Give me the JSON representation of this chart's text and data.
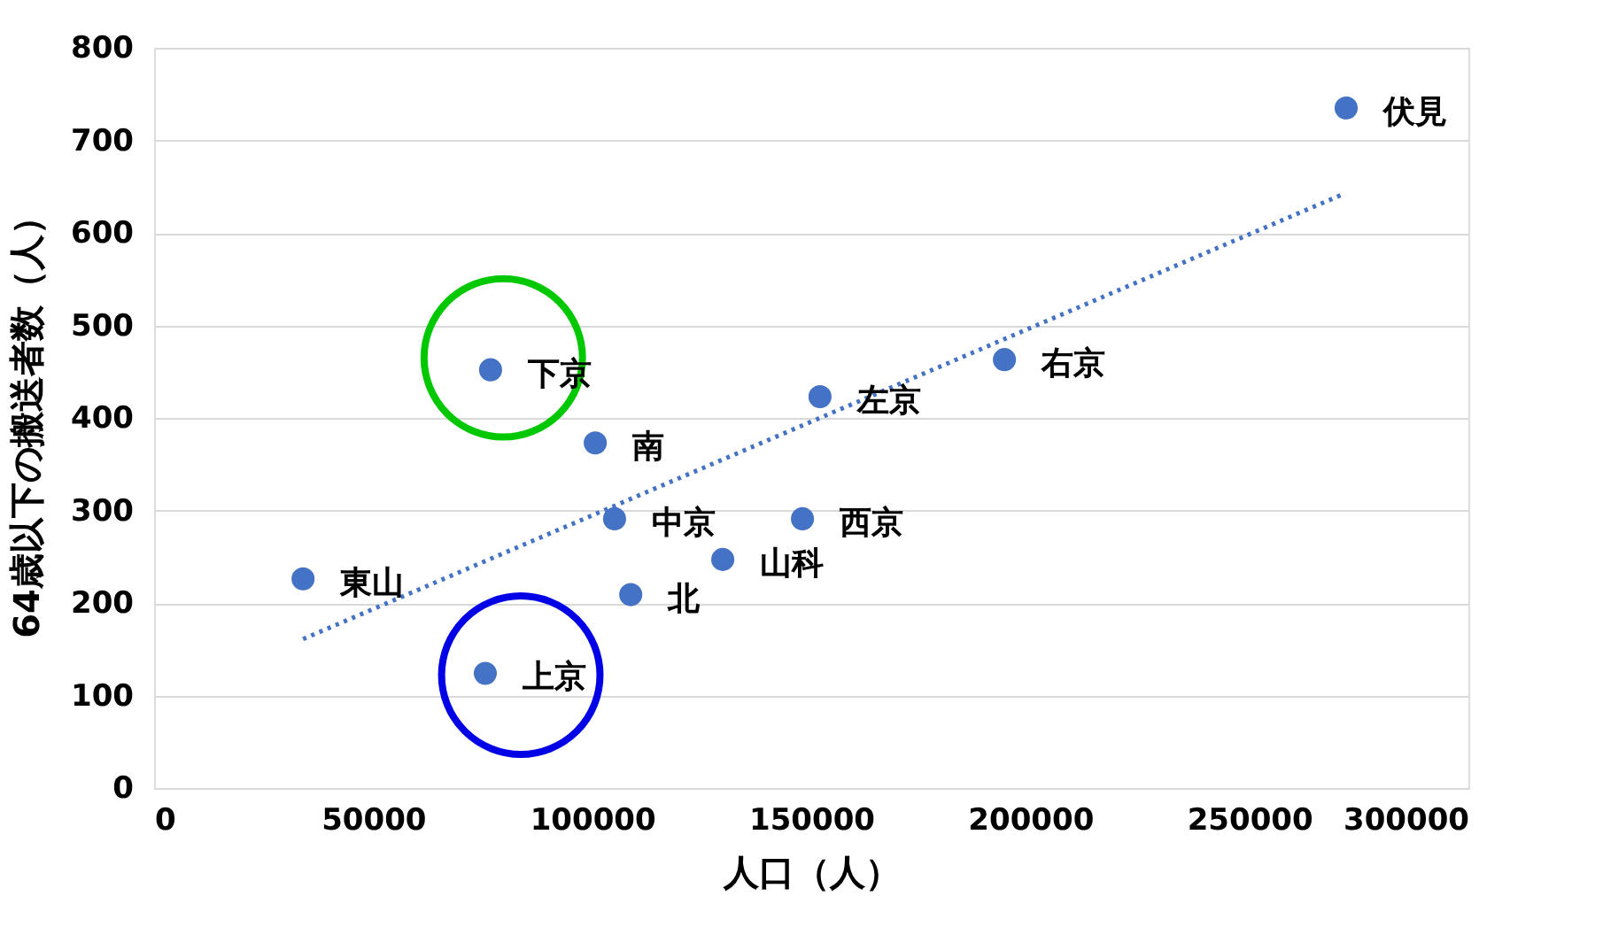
{
  "chart_data": {
    "type": "scatter",
    "xlabel": "人口（人）",
    "ylabel": "64歳以下の搬送者数（人）",
    "xlim": [
      0,
      300000
    ],
    "xticks": [
      0,
      50000,
      100000,
      150000,
      200000,
      250000,
      300000
    ],
    "ylim": [
      0,
      800
    ],
    "yticks": [
      0,
      100,
      200,
      300,
      400,
      500,
      600,
      700,
      800
    ],
    "grid": "y",
    "legend": false,
    "series": [
      {
        "type": "scatter",
        "color": "#4472c4",
        "marker": "circle",
        "x": [
          272100,
          194100,
          152000,
          76800,
          100700,
          105100,
          148000,
          129800,
          34000,
          108800,
          75600
        ],
        "values": [
          735,
          463,
          423,
          452,
          373,
          291,
          291,
          247,
          226,
          209,
          124
        ]
      },
      {
        "type": "line",
        "color": "#4472c4",
        "line_style": "dotted",
        "marker": "none",
        "x": [
          34000,
          271000
        ],
        "values": [
          161,
          641
        ]
      },
      {
        "color": "#00c800",
        "marker": "circle",
        "x": [
          79700
        ],
        "values": [
          465
        ]
      },
      {
        "color": "#0000e6",
        "marker": "circle",
        "x": [
          83700
        ],
        "values": [
          122
        ]
      }
    ],
    "annotations": [
      {
        "text": "伏見",
        "x": 272100,
        "y": 735
      },
      {
        "text": "右京",
        "x": 194100,
        "y": 463
      },
      {
        "text": "左京",
        "x": 152000,
        "y": 423
      },
      {
        "text": "下京",
        "x": 76800,
        "y": 452
      },
      {
        "text": "南",
        "x": 100700,
        "y": 373
      },
      {
        "text": "中京",
        "x": 105100,
        "y": 291
      },
      {
        "text": "西京",
        "x": 148000,
        "y": 291
      },
      {
        "text": "山科",
        "x": 129800,
        "y": 247
      },
      {
        "text": "東山",
        "x": 34000,
        "y": 226
      },
      {
        "text": "北",
        "x": 108800,
        "y": 209
      },
      {
        "text": "上京",
        "x": 75600,
        "y": 124
      }
    ]
  }
}
